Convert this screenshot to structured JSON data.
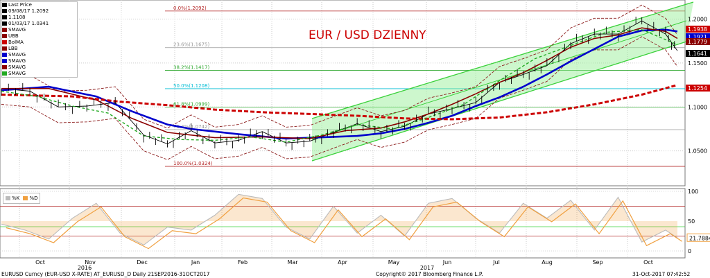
{
  "header": {
    "title": "EUR / USD DZIENNY"
  },
  "legend": {
    "items": [
      {
        "label": "Last Price",
        "color": "#000000"
      },
      {
        "label": "09/08/17 1.2092",
        "color": "#000000"
      },
      {
        "label": "1.1108",
        "color": "#000000"
      },
      {
        "label": "01/03/17 1.0341",
        "color": "#000000"
      },
      {
        "label": "SMAVG",
        "color": "#8b0000"
      },
      {
        "label": "UBB",
        "color": "#8b0000"
      },
      {
        "label": "BolMA",
        "color": "#cc0000"
      }
    ],
    "items_right": [
      {
        "label": "LBB",
        "color": "#8b0000"
      },
      {
        "label": "SMAVG",
        "color": "#0000cc"
      },
      {
        "label": "SMAVG",
        "color": "#0000cc"
      },
      {
        "label": "SMAVG",
        "color": "#8b0000"
      },
      {
        "label": "SMAVG",
        "color": "#22aa22"
      }
    ]
  },
  "oscillator_legend": {
    "k": "%K",
    "d": "%D"
  },
  "footer": {
    "left": "EURUSD Curncy (EUR-USD X-RATE) AT_EURUSD_D  Daily 21SEP2016-31OCT2017",
    "center": "Copyright© 2017 Bloomberg Finance L.P.",
    "right": "31-Oct-2017 07:42:52"
  },
  "chart_data": {
    "type": "line",
    "title": "EUR / USD DZIENNY",
    "x_axis": {
      "months": [
        "Oct",
        "Nov",
        "Dec",
        "Jan",
        "Feb",
        "Mar",
        "Apr",
        "May",
        "Jun",
        "Jul",
        "Aug",
        "Sep",
        "Oct"
      ],
      "years": [
        {
          "label": "2016",
          "month": "Nov"
        },
        {
          "label": "2017",
          "month": "Jun"
        }
      ]
    },
    "y_axis": {
      "ticks": [
        "1.2000",
        "1.1500",
        "1.1000",
        "1.0500"
      ],
      "range": [
        1.015,
        1.217
      ]
    },
    "right_labels": [
      {
        "text": "1.1938",
        "color": "#cc0000"
      },
      {
        "text": "1.1921",
        "color": "#0000cc"
      },
      {
        "text": "1.1779",
        "color": "#8b0000"
      },
      {
        "text": "1.1641",
        "color": "#000000"
      },
      {
        "text": "1.1254",
        "color": "#cc0000"
      }
    ],
    "fibonacci": [
      {
        "label": "0.0%(1.2092)",
        "level": 1.2092,
        "color": "#b22222"
      },
      {
        "label": "23.6%(1.1675)",
        "level": 1.1675,
        "color": "#999999"
      },
      {
        "label": "38.2%(1.1417)",
        "level": 1.1417,
        "color": "#33aa33"
      },
      {
        "label": "50.0%(1.1208)",
        "level": 1.1208,
        "color": "#00bcd4"
      },
      {
        "label": "61.8%(1.0999)",
        "level": 1.0999,
        "color": "#33aa33"
      },
      {
        "label": "76.4%(1.0742)",
        "level": 1.0742,
        "color": "#999999"
      },
      {
        "label": "100.0%(1.0324)",
        "level": 1.0324,
        "color": "#b22222"
      }
    ],
    "series": [
      {
        "name": "Last Price",
        "color": "#000000",
        "x": [
          0,
          12,
          24,
          36,
          48,
          60,
          70,
          80,
          90,
          100,
          110,
          120,
          130,
          140,
          150,
          160,
          170,
          180,
          190,
          200,
          210,
          220,
          230,
          240,
          250,
          260,
          270,
          280,
          285
        ],
        "values": [
          1.121,
          1.118,
          1.1,
          1.101,
          1.105,
          1.068,
          1.058,
          1.073,
          1.059,
          1.062,
          1.072,
          1.059,
          1.061,
          1.071,
          1.081,
          1.072,
          1.078,
          1.092,
          1.098,
          1.105,
          1.128,
          1.137,
          1.147,
          1.172,
          1.183,
          1.183,
          1.198,
          1.183,
          1.164
        ]
      },
      {
        "name": "SMAVG 100",
        "color": "#0000cc",
        "x": [
          0,
          20,
          40,
          55,
          70,
          80,
          100,
          120,
          140,
          150,
          160,
          170,
          180,
          190,
          200,
          210,
          220,
          230,
          240,
          250,
          260,
          270,
          280,
          285
        ],
        "values": [
          1.119,
          1.123,
          1.112,
          1.095,
          1.08,
          1.075,
          1.069,
          1.064,
          1.066,
          1.067,
          1.07,
          1.075,
          1.082,
          1.09,
          1.101,
          1.111,
          1.123,
          1.137,
          1.152,
          1.166,
          1.18,
          1.187,
          1.188,
          1.186
        ]
      },
      {
        "name": "SMAVG 50",
        "color": "#8b0000",
        "x": [
          0,
          20,
          40,
          55,
          70,
          90,
          110,
          130,
          145,
          160,
          170,
          180,
          190,
          200,
          210,
          220,
          230,
          240,
          250,
          260,
          270,
          280,
          285
        ],
        "values": [
          1.121,
          1.121,
          1.108,
          1.087,
          1.071,
          1.065,
          1.066,
          1.064,
          1.073,
          1.076,
          1.083,
          1.092,
          1.103,
          1.115,
          1.128,
          1.139,
          1.153,
          1.168,
          1.178,
          1.182,
          1.19,
          1.186,
          1.178
        ]
      },
      {
        "name": "SMAVG 200",
        "color": "#cc0000",
        "x": [
          0,
          30,
          50,
          70,
          90,
          110,
          130,
          150,
          170,
          190,
          210,
          230,
          250,
          270,
          285
        ],
        "values": [
          1.114,
          1.112,
          1.106,
          1.102,
          1.097,
          1.094,
          1.092,
          1.09,
          1.087,
          1.086,
          1.088,
          1.094,
          1.103,
          1.114,
          1.125
        ]
      },
      {
        "name": "SMAVG 10",
        "color": "#22aa22",
        "x": [
          0,
          15,
          30,
          45,
          60,
          75,
          90,
          105,
          120,
          135,
          150,
          165,
          180,
          195,
          210,
          225,
          240,
          255,
          270,
          285
        ],
        "values": [
          1.118,
          1.112,
          1.101,
          1.093,
          1.067,
          1.063,
          1.062,
          1.066,
          1.06,
          1.068,
          1.08,
          1.075,
          1.088,
          1.103,
          1.13,
          1.155,
          1.17,
          1.185,
          1.188,
          1.171
        ]
      }
    ],
    "oscillator": {
      "ticks": [
        "100",
        "50",
        "25",
        "0"
      ],
      "value_label": "21.7884",
      "x": [
        0,
        10,
        20,
        30,
        40,
        50,
        60,
        70,
        80,
        90,
        100,
        110,
        120,
        130,
        140,
        150,
        160,
        170,
        180,
        190,
        200,
        210,
        220,
        230,
        240,
        250,
        260,
        270,
        280,
        285
      ],
      "k": [
        45,
        35,
        20,
        55,
        80,
        30,
        10,
        40,
        35,
        60,
        95,
        88,
        40,
        20,
        75,
        30,
        60,
        25,
        80,
        88,
        55,
        30,
        80,
        55,
        85,
        35,
        90,
        15,
        35,
        22
      ]
    }
  }
}
